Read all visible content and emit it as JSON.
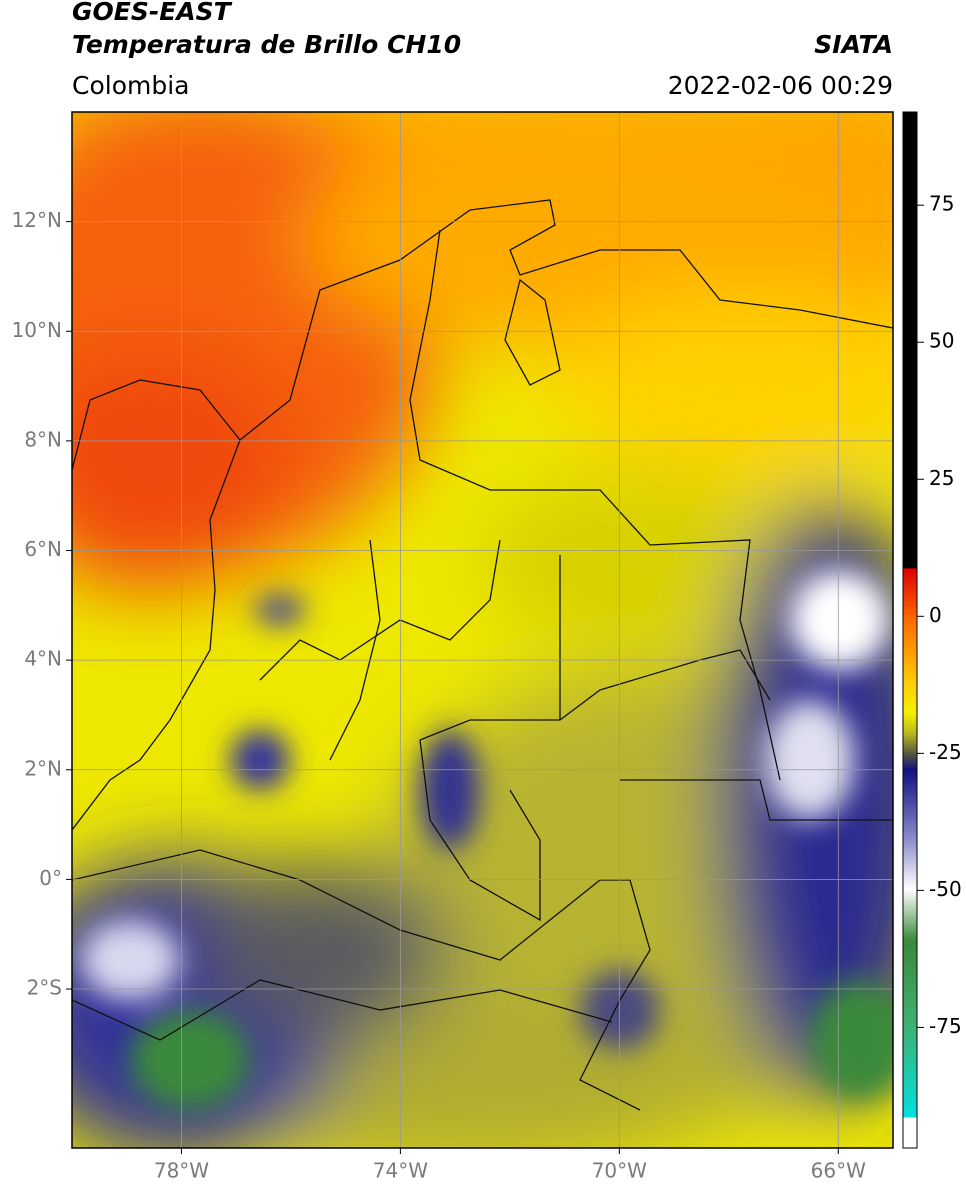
{
  "header": {
    "title": "GOES-EAST",
    "subtitle": "Temperatura de Brillo CH10",
    "source": "SIATA",
    "region": "Colombia",
    "timestamp": "2022-02-06 00:29"
  },
  "map": {
    "lonlim": [
      -80,
      -65
    ],
    "latlim": [
      -4.9,
      14
    ],
    "lon_ticks": [
      {
        "value": -78,
        "label": "78°W"
      },
      {
        "value": -74,
        "label": "74°W"
      },
      {
        "value": -70,
        "label": "70°W"
      },
      {
        "value": -66,
        "label": "66°W"
      }
    ],
    "lat_ticks": [
      {
        "value": 12,
        "label": "12°N"
      },
      {
        "value": 10,
        "label": "10°N"
      },
      {
        "value": 8,
        "label": "8°N"
      },
      {
        "value": 6,
        "label": "6°N"
      },
      {
        "value": 4,
        "label": "4°N"
      },
      {
        "value": 2,
        "label": "2°N"
      },
      {
        "value": 0,
        "label": "0°"
      },
      {
        "value": -2,
        "label": "2°S"
      }
    ]
  },
  "colorbar": {
    "lim": [
      -97,
      92
    ],
    "ticks": [
      75,
      50,
      25,
      0,
      -25,
      -50,
      -75
    ]
  }
}
